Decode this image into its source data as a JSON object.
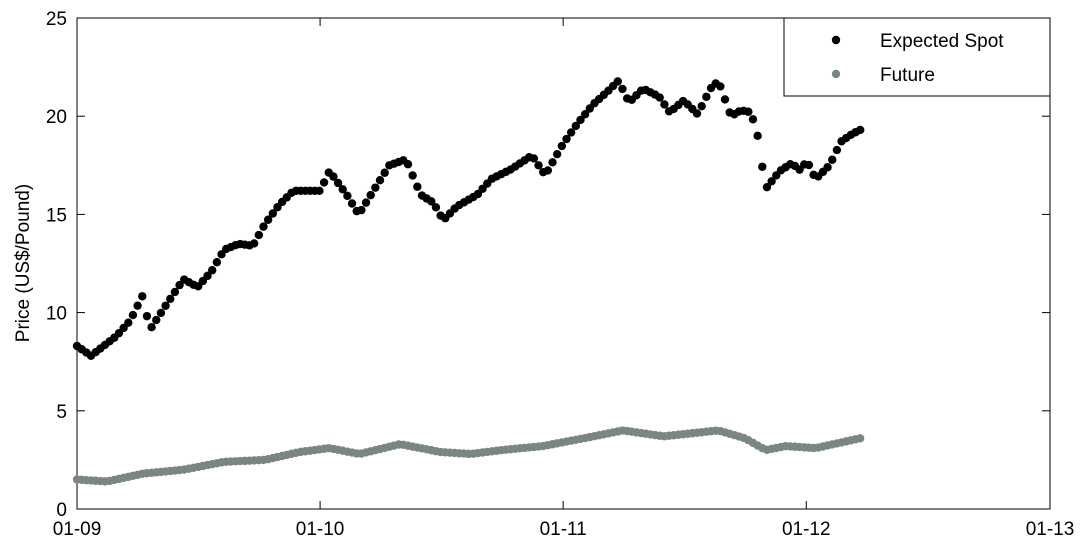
{
  "chart_data": {
    "type": "scatter",
    "title": "",
    "xlabel": "",
    "ylabel": "Price (US$/Pound)",
    "x_axis": {
      "type": "date",
      "ticks": [
        "2009-01",
        "2010-01",
        "2011-01",
        "2012-01",
        "2013-01"
      ],
      "tick_labels": [
        "01-09",
        "01-10",
        "01-11",
        "01-12",
        "01-13"
      ],
      "range": [
        "2009-01",
        "2013-01"
      ]
    },
    "y_axis": {
      "range": [
        0,
        25
      ],
      "ticks": [
        0,
        5,
        10,
        15,
        20,
        25
      ],
      "tick_labels": [
        "0",
        "5",
        "10",
        "15",
        "20",
        "25"
      ]
    },
    "grid": false,
    "legend": {
      "position": "top-right"
    },
    "series": [
      {
        "name": "Expected Spot",
        "color": "#000000",
        "anchors": [
          [
            "2009-01-01",
            8.3
          ],
          [
            "2009-01-22",
            7.8
          ],
          [
            "2009-02-10",
            8.3
          ],
          [
            "2009-03-01",
            8.8
          ],
          [
            "2009-03-22",
            9.6
          ],
          [
            "2009-04-10",
            10.9
          ],
          [
            "2009-04-20",
            9.1
          ],
          [
            "2009-05-15",
            10.4
          ],
          [
            "2009-06-10",
            11.7
          ],
          [
            "2009-07-01",
            11.3
          ],
          [
            "2009-07-22",
            12.1
          ],
          [
            "2009-08-10",
            13.2
          ],
          [
            "2009-09-01",
            13.5
          ],
          [
            "2009-09-22",
            13.4
          ],
          [
            "2009-10-10",
            14.5
          ],
          [
            "2009-11-01",
            15.5
          ],
          [
            "2009-11-22",
            16.2
          ],
          [
            "2010-01-01",
            16.2
          ],
          [
            "2010-01-15",
            17.2
          ],
          [
            "2010-02-10",
            16.0
          ],
          [
            "2010-02-28",
            15.0
          ],
          [
            "2010-03-22",
            16.2
          ],
          [
            "2010-04-15",
            17.5
          ],
          [
            "2010-05-10",
            17.8
          ],
          [
            "2010-06-01",
            16.0
          ],
          [
            "2010-06-20",
            15.6
          ],
          [
            "2010-07-05",
            14.7
          ],
          [
            "2010-07-25",
            15.4
          ],
          [
            "2010-08-25",
            16.0
          ],
          [
            "2010-09-15",
            16.8
          ],
          [
            "2010-10-15",
            17.3
          ],
          [
            "2010-11-15",
            18.0
          ],
          [
            "2010-12-05",
            17.0
          ],
          [
            "2011-01-01",
            18.6
          ],
          [
            "2011-01-22",
            19.6
          ],
          [
            "2011-02-15",
            20.6
          ],
          [
            "2011-03-10",
            21.3
          ],
          [
            "2011-03-25",
            21.8
          ],
          [
            "2011-04-10",
            20.7
          ],
          [
            "2011-05-01",
            21.4
          ],
          [
            "2011-05-25",
            21.0
          ],
          [
            "2011-06-10",
            20.2
          ],
          [
            "2011-07-01",
            20.8
          ],
          [
            "2011-07-22",
            20.1
          ],
          [
            "2011-08-10",
            21.4
          ],
          [
            "2011-08-22",
            21.8
          ],
          [
            "2011-09-10",
            20.0
          ],
          [
            "2011-09-25",
            20.3
          ],
          [
            "2011-10-10",
            20.2
          ],
          [
            "2011-10-20",
            19.0
          ],
          [
            "2011-11-01",
            16.3
          ],
          [
            "2011-11-22",
            17.2
          ],
          [
            "2011-12-10",
            17.6
          ],
          [
            "2011-12-25",
            17.2
          ],
          [
            "2012-01-01",
            17.8
          ],
          [
            "2012-01-15",
            16.8
          ],
          [
            "2012-02-05",
            17.5
          ],
          [
            "2012-02-22",
            18.7
          ],
          [
            "2012-03-10",
            19.1
          ],
          [
            "2012-03-22",
            19.3
          ]
        ]
      },
      {
        "name": "Future",
        "color": "#7a8781",
        "anchors": [
          [
            "2009-01-01",
            1.5
          ],
          [
            "2009-02-15",
            1.4
          ],
          [
            "2009-04-10",
            1.8
          ],
          [
            "2009-06-10",
            2.0
          ],
          [
            "2009-08-10",
            2.4
          ],
          [
            "2009-10-10",
            2.5
          ],
          [
            "2009-12-01",
            2.9
          ],
          [
            "2010-01-15",
            3.1
          ],
          [
            "2010-03-01",
            2.8
          ],
          [
            "2010-05-01",
            3.3
          ],
          [
            "2010-07-01",
            2.9
          ],
          [
            "2010-08-15",
            2.8
          ],
          [
            "2010-10-01",
            3.0
          ],
          [
            "2010-12-01",
            3.2
          ],
          [
            "2011-02-01",
            3.6
          ],
          [
            "2011-04-01",
            4.0
          ],
          [
            "2011-06-01",
            3.7
          ],
          [
            "2011-08-22",
            4.0
          ],
          [
            "2011-10-01",
            3.6
          ],
          [
            "2011-11-01",
            3.0
          ],
          [
            "2011-12-01",
            3.2
          ],
          [
            "2012-01-15",
            3.1
          ],
          [
            "2012-03-22",
            3.6
          ]
        ]
      }
    ]
  }
}
